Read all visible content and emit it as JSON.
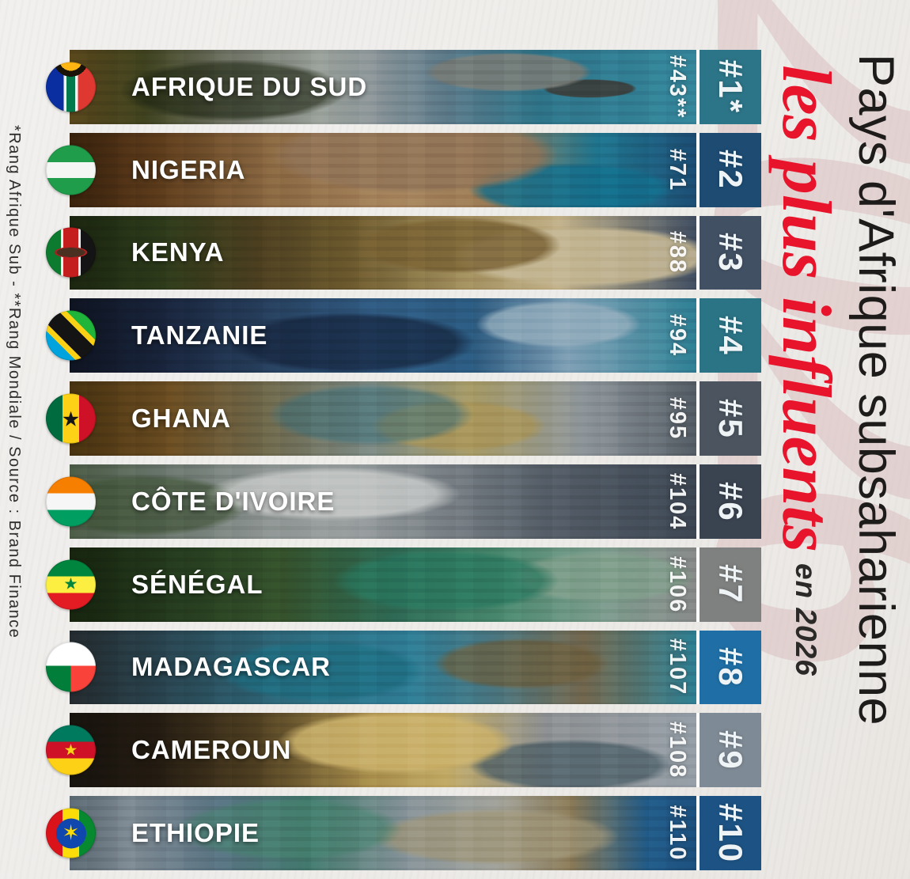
{
  "title": {
    "line1": "Pays d'Afrique subsaharienne",
    "line2_red": "les plus influents",
    "line2_suffix": "en 2026",
    "red_color": "#e8142b",
    "watermark_text": "2026",
    "watermark_color": "#d9bbbc"
  },
  "footnote": "*Rang Afrique Sub - **Rang Mondiale / Source : Brand Finance",
  "rows": [
    {
      "country": "AFRIQUE DU SUD",
      "world_rank": "#43**",
      "rank": "#1*",
      "rank_bg": "#2c7487",
      "photo_css": "radial-gradient(ellipse 170px 40px at 70% 30%, rgba(120,125,120,.9) 0 55%, transparent 62%), radial-gradient(ellipse 220px 60px at 26% 55%, rgba(30,38,18,.6) 0 55%, transparent 65%), radial-gradient(ellipse 90px 18px at 83% 52%, rgba(60,62,58,.9) 0 60%, transparent 66%), linear-gradient(90deg, #57451b 0%, #40431f 12%, #6f7366 26%, #9aa19b 40%, #8e979a 48%, #5d7b8a 60%, #2f758a 75%, #35889c 100%)",
      "flag_css": "radial-gradient(circle at 50% -6%, #ffb612 0 20%, #191407 20% 30%, transparent 30%), linear-gradient(90deg, #0a2ea0 0 36%, #f2f2f2 36% 41%, #007a4d 41% 59%, #f2f2f2 59% 64%, #de3831 64% 100%)",
      "emblem": null
    },
    {
      "country": "NIGERIA",
      "world_rank": "#71",
      "rank": "#2",
      "rank_bg": "#1d4b72",
      "photo_css": "radial-gradient(ellipse 260px 70px at 55% 30%, rgba(146,117,88,.85) 0 60%, transparent 70%), radial-gradient(ellipse 200px 50px at 80% 75%, rgba(18,110,140,.8) 0 55%, transparent 65%), linear-gradient(90deg, #37200c 0%, #5d3c1b 14%, #8a6842 32%, #a8875f 52%, #9c7c55 66%, #20768f 84%, #1d4e75 100%)",
      "flag_css": "linear-gradient(180deg, #1f9d4b 0 34%, #f4f6f3 34% 66%, #1f9d4b 66% 100%)",
      "emblem": null
    },
    {
      "country": "KENYA",
      "world_rank": "#88",
      "rank": "#3",
      "rank_bg": "#425064",
      "photo_css": "radial-gradient(ellipse 200px 55px at 62% 40%, rgba(120,96,50,.8) 0 55%, transparent 65%), radial-gradient(ellipse 260px 60px at 82% 55%, rgba(196,183,148,.9) 0 55%, transparent 65%), linear-gradient(90deg, #1a240f 0%, #2c3a1a 14%, #4c3f20 30%, #6d5a2e 45%, #a08d5c 62%, #c2b189 78%, #414f63 100%)",
      "flag_css": "radial-gradient(ellipse 46% 15% at 50% 50%, #4a3020 0 62%, #a82222 62% 72%, transparent 72%), linear-gradient(90deg, #0c7a2f 0 30%, #eeeeee 30% 35%, #c41e1e 35% 65%, #eeeeee 65% 70%, #141414 70% 100%)",
      "emblem": null
    },
    {
      "country": "TANZANIE",
      "world_rank": "#94",
      "rank": "#4",
      "rank_bg": "#2b7486",
      "photo_css": "radial-gradient(ellipse 240px 60px at 45% 60%, rgba(20,35,60,.7) 0 55%, transparent 65%), radial-gradient(ellipse 160px 45px at 78% 35%, rgba(150,175,190,.8) 0 55%, transparent 65%), linear-gradient(90deg, #0e1320 0%, #18233a 14%, #27405e 32%, #315d85 50%, #2b5a80 64%, #7fa0b5 80%, #2e8195 100%)",
      "flag_css": "linear-gradient(225deg, #1eb53a 0 30%, #fbd116 30% 38%, #141414 38% 62%, #fbd116 62% 70%, #00a3dd 70% 100%)",
      "emblem": null
    },
    {
      "country": "GHANA",
      "world_rank": "#95",
      "rank": "#5",
      "rank_bg": "#4b545f",
      "photo_css": "radial-gradient(ellipse 200px 60px at 48% 45%, rgba(60,110,120,.55) 0 55%, transparent 65%), radial-gradient(ellipse 170px 50px at 62% 60%, rgba(170,150,90,.8) 0 55%, transparent 65%), linear-gradient(90deg, #46310f 0%, #6b4d22 16%, #6f6a4e 32%, #7c8a85 48%, #a69a66 64%, #8f979c 82%, #555d66 100%)",
      "flag_css": "linear-gradient(90deg, #006b3f 0 33%, #fcd116 33% 67%, #ce1126 67% 100%)",
      "emblem": {
        "char": "★",
        "color": "#151515",
        "size": 26,
        "bg": null,
        "diameter": null
      }
    },
    {
      "country": "CÔTE D'IVOIRE",
      "world_rank": "#104",
      "rank": "#6",
      "rank_bg": "#3a4350",
      "photo_css": "radial-gradient(ellipse 260px 55px at 42% 40%, rgba(210,212,210,.7) 0 50%, transparent 62%), radial-gradient(ellipse 200px 60px at 12% 55%, rgba(60,80,50,.6) 0 55%, transparent 65%), linear-gradient(90deg, #4a5a44 0%, #67746a 14%, #8b9290 30%, #9aa0a0 44%, #7d8489 58%, #555e68 76%, #3d4754 100%)",
      "flag_css": "linear-gradient(180deg, #f77f00 0 33%, #f6f6f6 33% 67%, #009e60 67% 100%)",
      "emblem": null
    },
    {
      "country": "SÉNÉGAL",
      "world_rank": "#106",
      "rank": "#7",
      "rank_bg": "#7f8180",
      "photo_css": "radial-gradient(ellipse 220px 60px at 60% 45%, rgba(40,120,95,.7) 0 55%, transparent 65%), radial-gradient(ellipse 180px 50px at 85% 40%, rgba(130,160,140,.75) 0 55%, transparent 65%), linear-gradient(90deg, #16230e 0%, #243a1d 16%, #35522c 34%, #2e6a55 52%, #47876d 68%, #7b9c8d 84%, #8a8c8b 100%)",
      "flag_css": "linear-gradient(180deg, #00853f 0 33%, #fdef42 33% 67%, #e31b23 67% 100%)",
      "emblem": {
        "char": "★",
        "color": "#00853f",
        "size": 20,
        "bg": null,
        "diameter": null
      }
    },
    {
      "country": "MADAGASCAR",
      "world_rank": "#107",
      "rank": "#8",
      "rank_bg": "#1f6fa6",
      "photo_css": "radial-gradient(ellipse 200px 60px at 40% 55%, rgba(30,110,130,.75) 0 55%, transparent 65%), radial-gradient(ellipse 170px 50px at 72% 45%, rgba(110,95,60,.7) 0 55%, transparent 65%), linear-gradient(90deg, #232a2e 0%, #2a4652 16%, #2e6b7e 36%, #2f7e96 54%, #4b7680 68%, #74684f 82%, #2e8195 100%)",
      "flag_css": "linear-gradient(180deg, #ffffff 0 48%, rgba(0,0,0,0) 48%), linear-gradient(90deg, #007e3a 0 50%, #f9423a 50% 100%)",
      "emblem": null
    },
    {
      "country": "CAMEROUN",
      "world_rank": "#108",
      "rank": "#9",
      "rank_bg": "#7e8a95",
      "photo_css": "radial-gradient(ellipse 230px 60px at 52% 40%, rgba(205,180,110,.85) 0 55%, transparent 65%), radial-gradient(ellipse 200px 50px at 80% 70%, rgba(70,90,100,.7) 0 55%, transparent 65%), linear-gradient(90deg, #16120d 0%, #241c12 14%, #504022 30%, #a98f4d 48%, #c2ab67 60%, #8f9294 76%, #97a0a8 100%)",
      "flag_css": "linear-gradient(180deg, #007a5e 0 33%, #ce1126 33% 67%, #fcd116 67% 100%)",
      "emblem": {
        "char": "★",
        "color": "#fcd116",
        "size": 20,
        "bg": null,
        "diameter": null
      }
    },
    {
      "country": "ETHIOPIE",
      "world_rank": "#110",
      "rank": "#10",
      "rank_bg": "#1d5384",
      "photo_css": "radial-gradient(ellipse 220px 60px at 35% 45%, rgba(70,130,110,.6) 0 55%, transparent 65%), radial-gradient(ellipse 240px 55px at 68% 55%, rgba(160,150,120,.7) 0 55%, transparent 65%), linear-gradient(90deg, #5a6872 0%, #7e8a93 10%, #587382 24%, #42796d 38%, #879399 54%, #a3a49c 68%, #8a7a57 80%, #225b87 92%, #1d5180 100%)",
      "flag_css": "linear-gradient(90deg, #da121a 0 33%, #fcdd09 33% 67%, #078930 67% 100%)",
      "emblem": {
        "char": "✶",
        "color": "#fcdd09",
        "size": 27,
        "bg": "#0f47af",
        "diameter": 38
      }
    }
  ]
}
